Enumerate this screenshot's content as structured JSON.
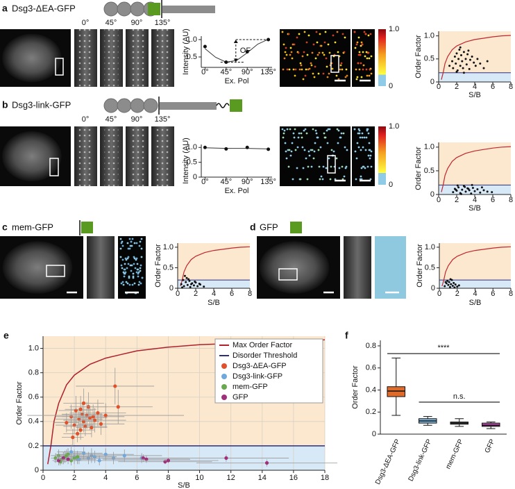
{
  "figure": {
    "a": {
      "label": "a",
      "construct": "Dsg3-ΔEA-GFP"
    },
    "b": {
      "label": "b",
      "construct": "Dsg3-link-GFP"
    },
    "c": {
      "label": "c",
      "construct": "mem-GFP"
    },
    "d": {
      "label": "d",
      "construct": "GFP"
    },
    "e": {
      "label": "e"
    },
    "f": {
      "label": "f"
    },
    "angles": [
      "0°",
      "45°",
      "90°",
      "135°"
    ],
    "colorbar_ticks": [
      0,
      {
        "value": 1,
        "label": "1.0"
      }
    ]
  },
  "chart_data": [
    {
      "type": "line",
      "ylabel": "Intensity (AU)",
      "xlabel": "Ex. Pol",
      "xlim": [
        -8,
        143
      ],
      "xticks": [
        {
          "value": 0,
          "label": "0°"
        },
        {
          "value": 45,
          "label": "45°"
        },
        {
          "value": 90,
          "label": "90°"
        },
        {
          "value": 135,
          "label": "135°"
        }
      ],
      "ylim": [
        0.2,
        1.1
      ],
      "yticks": [
        {
          "value": 0.5,
          "label": "0.5"
        },
        {
          "value": 1,
          "label": "1.0"
        }
      ],
      "x": [
        0,
        45,
        90,
        135
      ],
      "values": [
        0.8,
        0.35,
        0.65,
        1.0
      ],
      "fit_x": [
        0,
        22.5,
        45,
        67.5,
        90,
        112.5,
        135
      ],
      "fit_values": [
        0.74,
        0.49,
        0.35,
        0.4,
        0.62,
        0.87,
        1.01
      ],
      "annotation": "OF"
    },
    {
      "type": "scatter",
      "xlabel": "S/B",
      "ylabel": "Order Factor",
      "xlim": [
        0,
        8
      ],
      "xticks": [
        0,
        2,
        4,
        6,
        8
      ],
      "ylim": [
        0,
        1.1
      ],
      "yticks": [
        0,
        0.5,
        {
          "value": 1,
          "label": "1.0"
        }
      ],
      "threshold": 0.2,
      "curve_x": [
        0.3,
        0.5,
        0.7,
        1,
        1.5,
        2,
        3,
        4,
        5,
        6,
        7,
        8
      ],
      "curve_values": [
        0.05,
        0.2,
        0.4,
        0.55,
        0.7,
        0.78,
        0.87,
        0.92,
        0.95,
        0.98,
        1.0,
        1.01
      ],
      "x": [
        1.2,
        1.5,
        1.6,
        1.8,
        1.9,
        2.0,
        2.1,
        2.2,
        2.3,
        2.4,
        2.5,
        2.6,
        2.7,
        2.8,
        3.0,
        3.1,
        3.2,
        3.4,
        3.5,
        3.7,
        3.9,
        4.1,
        4.3,
        4.6,
        5.0,
        5.4,
        2.0,
        2.4,
        2.8,
        3.3
      ],
      "values": [
        0.35,
        0.45,
        0.3,
        0.55,
        0.4,
        0.62,
        0.25,
        0.5,
        0.7,
        0.35,
        0.58,
        0.45,
        0.3,
        0.65,
        0.5,
        0.38,
        0.6,
        0.28,
        0.48,
        0.55,
        0.42,
        0.35,
        0.5,
        0.4,
        0.3,
        0.45,
        0.22,
        0.75,
        0.2,
        0.68
      ]
    },
    {
      "type": "line",
      "ylabel": "Intensity (AU)",
      "xlabel": "Ex. Pol",
      "xlim": [
        -8,
        143
      ],
      "xticks": [
        {
          "value": 0,
          "label": "0°"
        },
        {
          "value": 45,
          "label": "45°"
        },
        {
          "value": 90,
          "label": "90°"
        },
        {
          "value": 135,
          "label": "135°"
        }
      ],
      "ylim": [
        0,
        1.1
      ],
      "yticks": [
        0,
        0.5,
        {
          "value": 1,
          "label": "1.0"
        }
      ],
      "x": [
        0,
        45,
        90,
        135
      ],
      "values": [
        1.0,
        0.95,
        1.0,
        0.94
      ],
      "fit_x": [
        0,
        45,
        90,
        135
      ],
      "fit_values": [
        0.99,
        0.97,
        0.97,
        0.95
      ]
    },
    {
      "type": "scatter",
      "xlabel": "S/B",
      "ylabel": "Order Factor",
      "xlim": [
        0,
        8
      ],
      "xticks": [
        0,
        2,
        4,
        6,
        8
      ],
      "ylim": [
        0,
        1.1
      ],
      "yticks": [
        0,
        0.5,
        {
          "value": 1,
          "label": "1.0"
        }
      ],
      "threshold": 0.2,
      "curve_x": [
        0.3,
        0.5,
        0.7,
        1,
        1.5,
        2,
        3,
        4,
        5,
        6,
        7,
        8
      ],
      "curve_values": [
        0.05,
        0.2,
        0.4,
        0.55,
        0.7,
        0.78,
        0.87,
        0.92,
        0.95,
        0.98,
        1.0,
        1.01
      ],
      "x": [
        1.6,
        1.8,
        2.0,
        2.2,
        2.4,
        2.6,
        2.8,
        3.0,
        3.2,
        3.4,
        3.6,
        3.8,
        4.0,
        4.3,
        4.6,
        5.0,
        5.4,
        5.9,
        2.1,
        2.5,
        2.9,
        3.3,
        3.7,
        1.9,
        4.8
      ],
      "values": [
        0.05,
        0.12,
        0.08,
        0.15,
        0.03,
        0.1,
        0.18,
        0.06,
        0.13,
        0.09,
        0.02,
        0.14,
        0.07,
        0.11,
        0.04,
        0.09,
        0.06,
        0.05,
        0.19,
        0.01,
        0.16,
        0.12,
        0.2,
        0.1,
        0.15
      ]
    },
    {
      "type": "scatter",
      "xlabel": "S/B",
      "ylabel": "Order Factor",
      "xlim": [
        0,
        8
      ],
      "xticks": [
        0,
        2,
        4,
        6,
        8
      ],
      "ylim": [
        0,
        1.1
      ],
      "yticks": [
        0,
        0.5,
        {
          "value": 1,
          "label": "1.0"
        }
      ],
      "threshold": 0.2,
      "curve_x": [
        0.3,
        0.5,
        0.7,
        1,
        1.5,
        2,
        3,
        4,
        5,
        6,
        7,
        8
      ],
      "curve_values": [
        0.05,
        0.2,
        0.4,
        0.55,
        0.7,
        0.78,
        0.87,
        0.92,
        0.95,
        0.98,
        1.0,
        1.01
      ],
      "x": [
        0.4,
        0.6,
        0.7,
        0.9,
        1.0,
        1.1,
        1.3,
        1.4,
        1.6,
        1.8,
        2.0,
        2.2,
        2.5,
        2.9,
        0.8,
        1.2,
        1.5,
        0.5,
        1.9,
        2.4
      ],
      "values": [
        0.1,
        0.2,
        0.05,
        0.15,
        0.25,
        0.08,
        0.18,
        0.03,
        0.12,
        0.07,
        0.14,
        0.05,
        0.09,
        0.04,
        0.3,
        0.22,
        0.1,
        0.02,
        0.16,
        0.11
      ]
    },
    {
      "type": "scatter",
      "xlabel": "S/B",
      "ylabel": "Order Factor",
      "xlim": [
        0,
        8
      ],
      "xticks": [
        0,
        2,
        4,
        6,
        8
      ],
      "ylim": [
        0,
        1.1
      ],
      "yticks": [
        0,
        0.5,
        {
          "value": 1,
          "label": "1.0"
        }
      ],
      "threshold": 0.2,
      "curve_x": [
        0.3,
        0.5,
        0.7,
        1,
        1.5,
        2,
        3,
        4,
        5,
        6,
        7,
        8
      ],
      "curve_values": [
        0.05,
        0.2,
        0.4,
        0.55,
        0.7,
        0.78,
        0.87,
        0.92,
        0.95,
        0.98,
        1.0,
        1.01
      ],
      "x": [
        0.6,
        0.8,
        0.9,
        1.0,
        1.1,
        1.2,
        1.3,
        1.4,
        1.5,
        1.6,
        1.8,
        2.0,
        2.2,
        0.7,
        1.25,
        1.7
      ],
      "values": [
        0.05,
        0.12,
        0.18,
        0.08,
        0.15,
        0.03,
        0.1,
        0.2,
        0.06,
        0.13,
        0.09,
        0.04,
        0.07,
        0.15,
        0.22,
        0.02
      ]
    },
    {
      "type": "scatter",
      "xlabel": "S/B",
      "ylabel": "Order Factor",
      "grid": true,
      "xlim": [
        0,
        18
      ],
      "xticks": [
        0,
        2,
        4,
        6,
        8,
        10,
        12,
        14,
        16,
        18
      ],
      "ylim": [
        0,
        1.1
      ],
      "yticks": [
        0,
        0.2,
        0.4,
        0.6,
        0.8,
        {
          "value": 1,
          "label": "1.0"
        }
      ],
      "threshold": 0.2,
      "lines": [
        {
          "name": "Max Order Factor",
          "color": "#b0202a",
          "x": [
            0.3,
            0.5,
            0.7,
            1,
            1.5,
            2,
            3,
            4,
            5,
            6,
            8,
            10,
            12,
            14,
            16,
            18
          ],
          "values": [
            0.05,
            0.2,
            0.4,
            0.55,
            0.7,
            0.78,
            0.87,
            0.92,
            0.95,
            0.98,
            1.01,
            1.03,
            1.04,
            1.05,
            1.06,
            1.07
          ]
        },
        {
          "name": "Disorder Threshold",
          "color": "#2c2c7c",
          "x": [
            0,
            18
          ],
          "values": [
            0.2,
            0.2
          ]
        }
      ],
      "series": [
        {
          "name": "Dsg3-ΔEA-GFP",
          "color": "#e0502a",
          "x": [
            1.5,
            1.8,
            2.0,
            2.1,
            2.3,
            2.4,
            2.5,
            2.6,
            2.7,
            2.8,
            2.9,
            3.0,
            3.1,
            3.3,
            3.5,
            3.7,
            4.6,
            4.8,
            2.2,
            1.9,
            2.6,
            3.2,
            4.0,
            2.4
          ],
          "values": [
            0.39,
            0.44,
            0.37,
            0.49,
            0.42,
            0.33,
            0.46,
            0.4,
            0.36,
            0.45,
            0.52,
            0.43,
            0.35,
            0.41,
            0.47,
            0.38,
            0.69,
            0.52,
            0.3,
            0.27,
            0.55,
            0.44,
            0.45,
            0.5
          ],
          "xerr": [
            0.8,
            1.0,
            1.2,
            1.1,
            1.5,
            0.9,
            1.3,
            1.0,
            1.4,
            1.6,
            1.2,
            1.1,
            1.0,
            2.0,
            1.8,
            1.5,
            2.5,
            2.2,
            0.9,
            0.7,
            1.3,
            2.0,
            5.0,
            1.0
          ],
          "yerr": [
            0.08,
            0.1,
            0.07,
            0.12,
            0.09,
            0.08,
            0.1,
            0.09,
            0.08,
            0.11,
            0.12,
            0.1,
            0.08,
            0.1,
            0.11,
            0.09,
            0.15,
            0.14,
            0.07,
            0.07,
            0.12,
            0.1,
            0.1,
            0.11
          ]
        },
        {
          "name": "Dsg3-link-GFP",
          "color": "#6fa8dc",
          "x": [
            1.0,
            1.3,
            1.6,
            2.0,
            2.3,
            2.6,
            2.9,
            3.1,
            3.3,
            3.6,
            4.0,
            4.5,
            5.2,
            6.3,
            1.8,
            2.2
          ],
          "values": [
            0.12,
            0.1,
            0.13,
            0.11,
            0.09,
            0.14,
            0.1,
            0.12,
            0.11,
            0.08,
            0.13,
            0.1,
            0.12,
            0.1,
            0.15,
            0.09
          ],
          "xerr": [
            0.5,
            0.6,
            0.8,
            1.0,
            1.1,
            1.2,
            1.3,
            1.5,
            1.4,
            1.6,
            1.8,
            2.0,
            2.4,
            3.0,
            0.9,
            1.0
          ],
          "yerr": [
            0.04,
            0.05,
            0.05,
            0.06,
            0.04,
            0.05,
            0.05,
            0.06,
            0.05,
            0.04,
            0.05,
            0.05,
            0.05,
            0.04,
            0.06,
            0.04
          ]
        },
        {
          "name": "mem-GFP",
          "color": "#6aa84f",
          "x": [
            0.8,
            1.0,
            1.2,
            1.4,
            1.6,
            1.8,
            2.0,
            2.2,
            1.1,
            1.5
          ],
          "values": [
            0.1,
            0.12,
            0.09,
            0.11,
            0.13,
            0.08,
            0.1,
            0.11,
            0.07,
            0.12
          ],
          "xerr": [
            0.3,
            0.4,
            0.5,
            0.5,
            0.6,
            0.7,
            0.8,
            0.8,
            0.4,
            0.6
          ],
          "yerr": [
            0.04,
            0.05,
            0.04,
            0.05,
            0.05,
            0.04,
            0.04,
            0.05,
            0.03,
            0.05
          ]
        },
        {
          "name": "GFP",
          "color": "#a0307a",
          "x": [
            1.0,
            1.3,
            6.4,
            6.6,
            7.8,
            8.0,
            11.7,
            14.3,
            1.6
          ],
          "values": [
            0.08,
            0.1,
            0.1,
            0.09,
            0.07,
            0.08,
            0.1,
            0.06,
            0.09
          ],
          "xerr": [
            0.4,
            0.5,
            2.5,
            2.8,
            3.0,
            3.2,
            4.0,
            4.5,
            0.6
          ],
          "yerr": [
            0.04,
            0.05,
            0.03,
            0.03,
            0.02,
            0.02,
            0.03,
            0.03,
            0.04
          ]
        }
      ]
    },
    {
      "type": "box",
      "ylabel": "Order Factor",
      "ylim": [
        0,
        0.85
      ],
      "yticks": [
        0,
        0.2,
        0.4,
        0.6,
        0.8
      ],
      "categories": [
        "Dsg3-ΔEA-GFP",
        "Dsg3-link-GFP",
        "mem-GFP",
        "GFP"
      ],
      "colors": [
        "#e06a2a",
        "#7fb8e0",
        "#707070",
        "#c050b0"
      ],
      "boxes": [
        {
          "low": 0.17,
          "q1": 0.34,
          "median": 0.39,
          "q3": 0.43,
          "high": 0.69
        },
        {
          "low": 0.08,
          "q1": 0.1,
          "median": 0.12,
          "q3": 0.14,
          "high": 0.16
        },
        {
          "low": 0.07,
          "q1": 0.09,
          "median": 0.1,
          "q3": 0.11,
          "high": 0.14
        },
        {
          "low": 0.05,
          "q1": 0.07,
          "median": 0.08,
          "q3": 0.1,
          "high": 0.11
        }
      ],
      "brackets": [
        {
          "label": "****",
          "y": 0.73
        },
        {
          "label": "n.s.",
          "y": 0.29
        }
      ]
    }
  ]
}
